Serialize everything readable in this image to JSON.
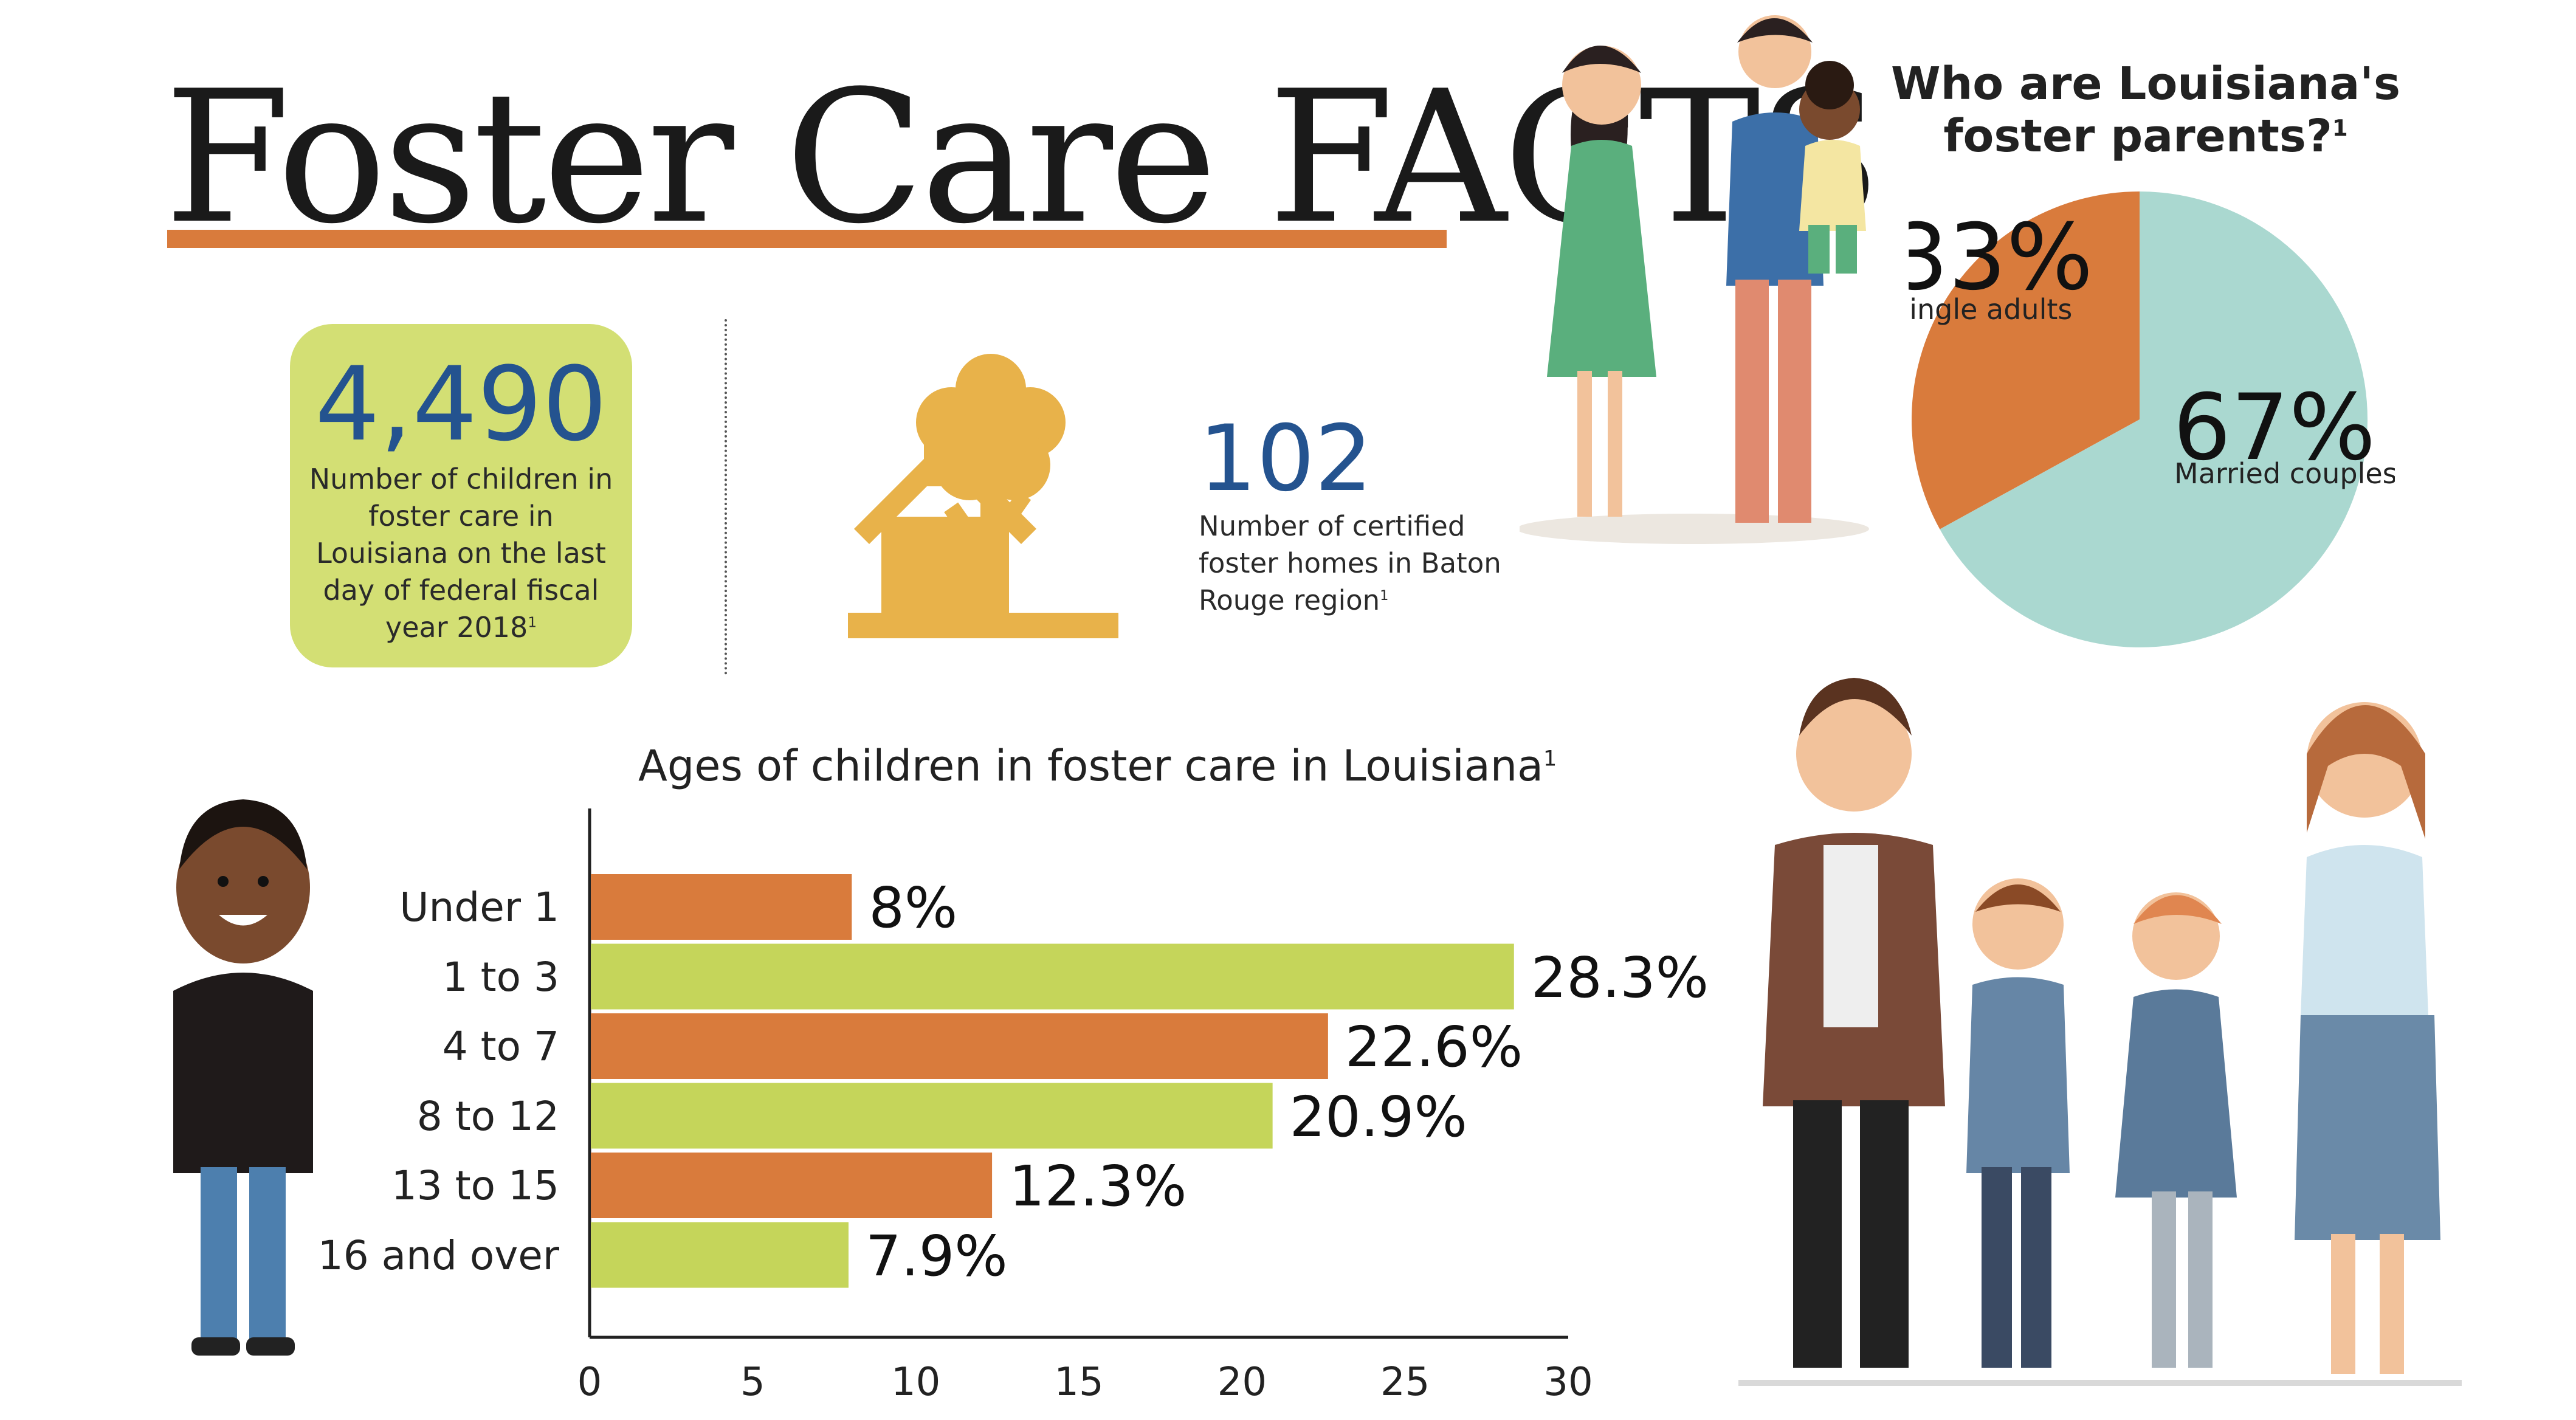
{
  "title": "Foster Care FACTS",
  "stat_card": {
    "number": "4,490",
    "description": "Number of children in foster care in Louisiana on the last day of federal fiscal year 2018",
    "footnote": "1"
  },
  "homes": {
    "number": "102",
    "description": "Number of certified foster homes in Baton Rouge region",
    "footnote": "1"
  },
  "colors": {
    "orange": "#d97b3c",
    "green": "#c5d55a",
    "card": "#d3df74",
    "navy": "#24538f",
    "teal": "#aad8d0",
    "gold": "#e8b24a"
  },
  "chart_data": [
    {
      "type": "pie",
      "title": "Who are Louisiana's foster parents?",
      "title_footnote": "1",
      "slices": [
        {
          "label": "Single adults",
          "value": 33,
          "display": "33%",
          "color": "#d97b3c"
        },
        {
          "label": "Married couples",
          "value": 67,
          "display": "67%",
          "color": "#aad8d0"
        }
      ]
    },
    {
      "type": "bar",
      "orientation": "horizontal",
      "title": "Ages of children in foster care in Louisiana",
      "title_footnote": "1",
      "categories": [
        "Under 1",
        "1 to 3",
        "4 to 7",
        "8 to 12",
        "13 to 15",
        "16 and over"
      ],
      "values": [
        8,
        28.3,
        22.6,
        20.9,
        12.3,
        7.9
      ],
      "value_labels": [
        "8%",
        "28.3%",
        "22.6%",
        "20.9%",
        "12.3%",
        "7.9%"
      ],
      "bar_colors": [
        "#d97b3c",
        "#c5d55a",
        "#d97b3c",
        "#c5d55a",
        "#d97b3c",
        "#c5d55a"
      ],
      "xlim": [
        0,
        30
      ],
      "xticks": [
        "0",
        "5",
        "10",
        "15",
        "20",
        "25",
        "30"
      ],
      "grid": false
    }
  ]
}
